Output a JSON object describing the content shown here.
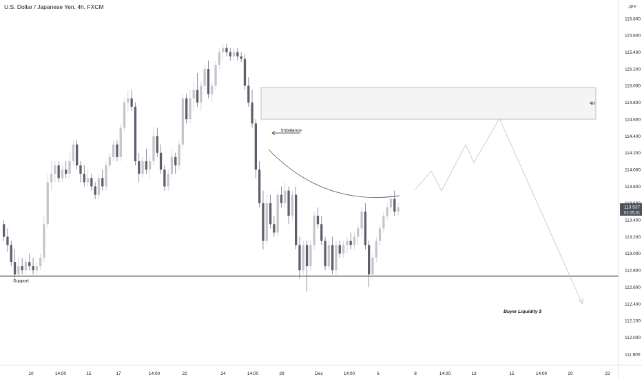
{
  "chart_data": {
    "type": "candlestick",
    "title": "U.S. Dollar / Japanese Yen, 4h, FXCM",
    "currency_label": "JPY",
    "ylim": [
      111.7,
      116.1
    ],
    "y_ticks": [
      "115.800",
      "115.600",
      "115.400",
      "115.200",
      "115.000",
      "114.800",
      "114.600",
      "114.400",
      "114.200",
      "114.000",
      "113.800",
      "113.600",
      "113.400",
      "113.200",
      "113.000",
      "112.800",
      "112.600",
      "112.400",
      "112.200",
      "112.000",
      "111.800"
    ],
    "x_ticks": [
      "10",
      "14:00",
      "15",
      "17",
      "14:00",
      "22",
      "24",
      "14:00",
      "29",
      "Dec",
      "14:00",
      "6",
      "8",
      "14:00",
      "13",
      "15",
      "14:00",
      "20",
      "22"
    ],
    "price_badge": {
      "price": "113.537",
      "countdown": "02:25:31"
    },
    "support": {
      "label": "Support",
      "price": 112.73
    },
    "zone": {
      "label": "4H",
      "top": 114.98,
      "bottom": 114.6
    },
    "imbalance_label": "Imbalance",
    "buyer_liquidity_label": "Buyer Liquidity $",
    "candles_ohlc": [
      [
        113.35,
        113.4,
        113.15,
        113.2
      ],
      [
        113.2,
        113.3,
        113.02,
        113.1
      ],
      [
        113.1,
        113.15,
        112.85,
        112.9
      ],
      [
        112.9,
        113.05,
        112.7,
        112.75
      ],
      [
        112.75,
        112.95,
        112.7,
        112.85
      ],
      [
        112.85,
        112.95,
        112.75,
        112.8
      ],
      [
        112.8,
        112.95,
        112.75,
        112.9
      ],
      [
        112.9,
        113.0,
        112.8,
        112.85
      ],
      [
        112.85,
        112.95,
        112.75,
        112.8
      ],
      [
        112.8,
        112.9,
        112.75,
        112.85
      ],
      [
        112.85,
        113.0,
        112.8,
        112.95
      ],
      [
        112.95,
        113.45,
        112.9,
        113.35
      ],
      [
        113.35,
        113.95,
        113.3,
        113.85
      ],
      [
        113.85,
        114.1,
        113.75,
        113.95
      ],
      [
        113.95,
        114.1,
        113.85,
        114.05
      ],
      [
        114.05,
        114.1,
        113.85,
        113.9
      ],
      [
        113.9,
        114.05,
        113.85,
        114.0
      ],
      [
        114.0,
        114.1,
        113.9,
        113.95
      ],
      [
        113.95,
        114.2,
        113.9,
        114.1
      ],
      [
        114.1,
        114.35,
        114.05,
        114.3
      ],
      [
        114.3,
        114.35,
        114.0,
        114.05
      ],
      [
        114.05,
        114.1,
        113.85,
        113.95
      ],
      [
        113.95,
        114.05,
        113.8,
        113.85
      ],
      [
        113.85,
        114.0,
        113.8,
        113.9
      ],
      [
        113.9,
        113.95,
        113.75,
        113.8
      ],
      [
        113.8,
        113.85,
        113.65,
        113.7
      ],
      [
        113.7,
        113.95,
        113.65,
        113.9
      ],
      [
        113.9,
        114.0,
        113.75,
        113.8
      ],
      [
        113.8,
        114.1,
        113.75,
        114.05
      ],
      [
        114.05,
        114.2,
        114.0,
        114.15
      ],
      [
        114.15,
        114.35,
        114.1,
        114.3
      ],
      [
        114.3,
        114.35,
        114.1,
        114.15
      ],
      [
        114.15,
        114.55,
        114.1,
        114.5
      ],
      [
        114.5,
        114.85,
        114.45,
        114.8
      ],
      [
        114.8,
        114.95,
        114.7,
        114.85
      ],
      [
        114.85,
        114.95,
        114.7,
        114.75
      ],
      [
        114.75,
        114.8,
        114.05,
        114.1
      ],
      [
        114.1,
        114.2,
        113.85,
        113.95
      ],
      [
        113.95,
        114.15,
        113.9,
        114.1
      ],
      [
        114.1,
        114.25,
        113.95,
        114.0
      ],
      [
        114.0,
        114.15,
        113.9,
        114.1
      ],
      [
        114.1,
        114.5,
        114.05,
        114.4
      ],
      [
        114.4,
        114.5,
        114.15,
        114.2
      ],
      [
        114.2,
        114.3,
        113.95,
        114.0
      ],
      [
        114.0,
        114.05,
        113.75,
        113.8
      ],
      [
        113.8,
        114.0,
        113.75,
        113.95
      ],
      [
        113.95,
        114.25,
        113.9,
        114.15
      ],
      [
        114.15,
        114.2,
        113.95,
        114.05
      ],
      [
        114.05,
        114.35,
        114.0,
        114.3
      ],
      [
        114.3,
        114.9,
        114.25,
        114.85
      ],
      [
        114.85,
        114.9,
        114.55,
        114.6
      ],
      [
        114.6,
        114.95,
        114.55,
        114.85
      ],
      [
        114.85,
        115.05,
        114.7,
        114.95
      ],
      [
        114.95,
        115.15,
        114.75,
        114.8
      ],
      [
        114.8,
        115.05,
        114.7,
        115.0
      ],
      [
        115.0,
        115.25,
        114.95,
        115.2
      ],
      [
        115.2,
        115.3,
        114.85,
        114.9
      ],
      [
        114.9,
        115.05,
        114.8,
        115.0
      ],
      [
        115.0,
        115.3,
        114.95,
        115.25
      ],
      [
        115.25,
        115.45,
        115.2,
        115.4
      ],
      [
        115.4,
        115.5,
        115.3,
        115.45
      ],
      [
        115.45,
        115.5,
        115.35,
        115.4
      ],
      [
        115.4,
        115.45,
        115.3,
        115.35
      ],
      [
        115.35,
        115.45,
        115.3,
        115.4
      ],
      [
        115.4,
        115.45,
        115.3,
        115.35
      ],
      [
        115.35,
        115.4,
        115.28,
        115.32
      ],
      [
        115.32,
        115.38,
        114.95,
        115.0
      ],
      [
        115.0,
        115.1,
        114.75,
        114.8
      ],
      [
        114.8,
        114.95,
        114.5,
        114.55
      ],
      [
        114.55,
        114.6,
        113.9,
        114.0
      ],
      [
        114.0,
        114.1,
        113.55,
        113.6
      ],
      [
        113.6,
        113.75,
        113.05,
        113.15
      ],
      [
        113.15,
        113.7,
        113.1,
        113.6
      ],
      [
        113.6,
        113.7,
        113.3,
        113.35
      ],
      [
        113.35,
        113.45,
        113.2,
        113.25
      ],
      [
        113.25,
        113.75,
        113.2,
        113.7
      ],
      [
        113.7,
        113.8,
        113.55,
        113.6
      ],
      [
        113.6,
        113.85,
        113.55,
        113.75
      ],
      [
        113.75,
        113.8,
        113.35,
        113.45
      ],
      [
        113.45,
        113.75,
        113.4,
        113.7
      ],
      [
        113.7,
        113.8,
        113.05,
        113.1
      ],
      [
        113.1,
        113.2,
        112.7,
        112.8
      ],
      [
        112.8,
        113.15,
        112.75,
        113.1
      ],
      [
        113.1,
        113.15,
        112.55,
        112.85
      ],
      [
        112.85,
        113.15,
        112.8,
        113.1
      ],
      [
        113.1,
        113.5,
        113.05,
        113.45
      ],
      [
        113.45,
        113.55,
        113.3,
        113.35
      ],
      [
        113.35,
        113.45,
        113.1,
        113.15
      ],
      [
        113.15,
        113.2,
        112.8,
        112.85
      ],
      [
        112.85,
        113.15,
        112.8,
        113.1
      ],
      [
        113.1,
        113.2,
        112.75,
        112.8
      ],
      [
        112.8,
        113.15,
        112.75,
        113.1
      ],
      [
        113.1,
        113.15,
        112.95,
        113.0
      ],
      [
        113.0,
        113.15,
        112.95,
        113.1
      ],
      [
        113.1,
        113.2,
        113.0,
        113.15
      ],
      [
        113.15,
        113.25,
        113.05,
        113.1
      ],
      [
        113.1,
        113.25,
        113.05,
        113.2
      ],
      [
        113.2,
        113.35,
        113.1,
        113.3
      ],
      [
        113.3,
        113.55,
        113.2,
        113.5
      ],
      [
        113.5,
        113.6,
        113.05,
        113.1
      ],
      [
        113.1,
        113.15,
        112.6,
        112.75
      ],
      [
        112.75,
        113.0,
        112.7,
        112.95
      ],
      [
        112.95,
        113.2,
        112.9,
        113.15
      ],
      [
        113.15,
        113.35,
        113.1,
        113.3
      ],
      [
        113.3,
        113.5,
        113.25,
        113.45
      ],
      [
        113.45,
        113.6,
        113.4,
        113.55
      ],
      [
        113.55,
        113.7,
        113.5,
        113.65
      ],
      [
        113.65,
        113.75,
        113.45,
        113.5
      ],
      [
        113.5,
        113.6,
        113.45,
        113.55
      ]
    ]
  }
}
